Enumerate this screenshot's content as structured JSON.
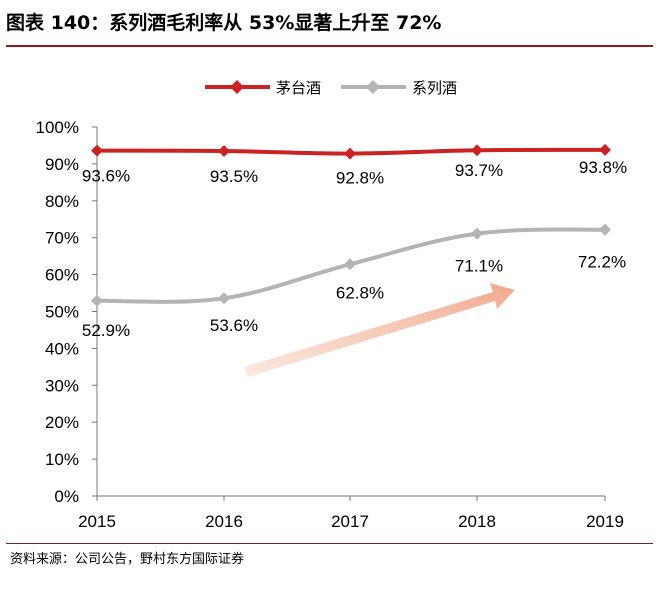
{
  "title": "图表 140：系列酒毛利率从 53%显著上升至 72%",
  "source": "资料来源：公司公告，野村东方国际证券",
  "colors": {
    "maotai": "#cc2222",
    "series_liquor": "#b4b4b4",
    "rule": "#8c1d1d"
  },
  "chart_data": {
    "type": "line",
    "categories": [
      "2015",
      "2016",
      "2017",
      "2018",
      "2019"
    ],
    "series": [
      {
        "name": "茅台酒",
        "values": [
          93.6,
          93.5,
          92.8,
          93.7,
          93.8
        ],
        "labels": [
          "93.6%",
          "93.5%",
          "92.8%",
          "93.7%",
          "93.8%"
        ]
      },
      {
        "name": "系列酒",
        "values": [
          52.9,
          53.6,
          62.8,
          71.1,
          72.2
        ],
        "labels": [
          "52.9%",
          "53.6%",
          "62.8%",
          "71.1%",
          "72.2%"
        ]
      }
    ],
    "yticks": [
      "0%",
      "10%",
      "20%",
      "30%",
      "40%",
      "50%",
      "60%",
      "70%",
      "80%",
      "90%",
      "100%"
    ],
    "ylim": [
      0,
      100
    ],
    "grid": false,
    "legend": "top-center",
    "annotation": "upward-arrow"
  }
}
